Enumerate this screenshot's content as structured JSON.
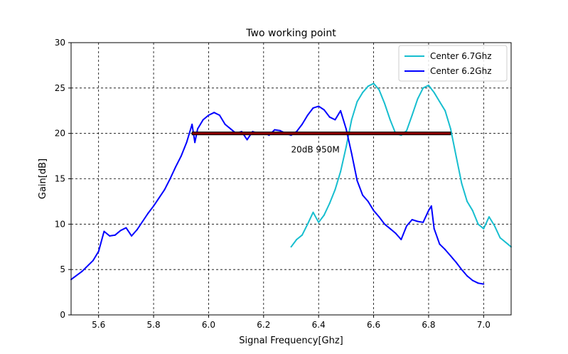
{
  "chart_data": {
    "type": "line",
    "title": "Two working point",
    "xlabel": "Signal Frequency[Ghz]",
    "ylabel": "Gain[dB]",
    "xlim": [
      5.5,
      7.1
    ],
    "ylim": [
      0,
      30
    ],
    "xticks": [
      5.6,
      5.8,
      6.0,
      6.2,
      6.4,
      6.6,
      6.8,
      7.0
    ],
    "xtick_labels": [
      "5.6",
      "5.8",
      "6.0",
      "6.2",
      "6.4",
      "6.6",
      "6.8",
      "7.0"
    ],
    "yticks": [
      0,
      5,
      10,
      15,
      20,
      25,
      30
    ],
    "ytick_labels": [
      "0",
      "5",
      "10",
      "15",
      "20",
      "25",
      "30"
    ],
    "grid": true,
    "grid_style": "dashed",
    "legend_position": "top-right",
    "series": [
      {
        "name": "Center 6.7Ghz",
        "color": "#17becf",
        "x": [
          6.3,
          6.32,
          6.34,
          6.36,
          6.38,
          6.4,
          6.42,
          6.44,
          6.46,
          6.48,
          6.5,
          6.52,
          6.54,
          6.56,
          6.58,
          6.6,
          6.62,
          6.64,
          6.66,
          6.68,
          6.7,
          6.72,
          6.74,
          6.76,
          6.78,
          6.8,
          6.82,
          6.84,
          6.86,
          6.88,
          6.9,
          6.92,
          6.94,
          6.96,
          6.98,
          7.0,
          7.02,
          7.04,
          7.06,
          7.08,
          7.1
        ],
        "y": [
          7.5,
          8.3,
          8.8,
          10.0,
          11.3,
          10.2,
          11.0,
          12.3,
          13.8,
          15.8,
          18.5,
          21.5,
          23.5,
          24.5,
          25.2,
          25.5,
          24.8,
          23.3,
          21.5,
          20.0,
          19.8,
          20.3,
          22.0,
          23.8,
          25.0,
          25.3,
          24.5,
          23.5,
          22.5,
          20.5,
          17.5,
          14.5,
          12.5,
          11.5,
          10.0,
          9.5,
          10.8,
          9.8,
          8.5,
          8.0,
          7.5
        ]
      },
      {
        "name": "Center 6.2Ghz",
        "color": "#0000ff",
        "x": [
          5.5,
          5.54,
          5.58,
          5.6,
          5.62,
          5.64,
          5.66,
          5.68,
          5.7,
          5.72,
          5.74,
          5.76,
          5.78,
          5.8,
          5.82,
          5.84,
          5.86,
          5.88,
          5.9,
          5.92,
          5.94,
          5.95,
          5.96,
          5.98,
          6.0,
          6.02,
          6.04,
          6.06,
          6.08,
          6.1,
          6.12,
          6.14,
          6.16,
          6.18,
          6.2,
          6.22,
          6.24,
          6.26,
          6.28,
          6.3,
          6.32,
          6.34,
          6.36,
          6.38,
          6.4,
          6.42,
          6.44,
          6.46,
          6.48,
          6.5,
          6.52,
          6.54,
          6.56,
          6.58,
          6.6,
          6.62,
          6.64,
          6.66,
          6.68,
          6.7,
          6.72,
          6.74,
          6.76,
          6.78,
          6.8,
          6.81,
          6.82,
          6.84,
          6.86,
          6.88,
          6.9,
          6.92,
          6.94,
          6.96,
          6.98,
          7.0
        ],
        "y": [
          3.9,
          4.8,
          6.0,
          7.0,
          9.2,
          8.7,
          8.8,
          9.3,
          9.6,
          8.7,
          9.4,
          10.3,
          11.2,
          12.0,
          12.9,
          13.8,
          15.0,
          16.3,
          17.5,
          19.0,
          21.0,
          19.0,
          20.5,
          21.5,
          22.0,
          22.3,
          22.0,
          21.0,
          20.5,
          20.0,
          20.2,
          19.3,
          20.2,
          20.0,
          20.1,
          19.8,
          20.4,
          20.3,
          20.0,
          19.8,
          20.2,
          21.0,
          22.0,
          22.8,
          23.0,
          22.6,
          21.8,
          21.5,
          22.5,
          20.5,
          17.8,
          14.8,
          13.2,
          12.5,
          11.5,
          10.8,
          10.0,
          9.5,
          9.0,
          8.3,
          9.8,
          10.5,
          10.3,
          10.2,
          11.5,
          12.0,
          9.5,
          7.8,
          7.2,
          6.5,
          5.8,
          5.0,
          4.3,
          3.8,
          3.5,
          3.4
        ]
      }
    ],
    "bandwidth_bar": {
      "x_start": 5.94,
      "x_end": 6.88,
      "y": 20,
      "fill_color": "#8b0000",
      "annotation": "20dB 950M",
      "annotation_x": 6.3,
      "annotation_y": 18.2
    }
  }
}
